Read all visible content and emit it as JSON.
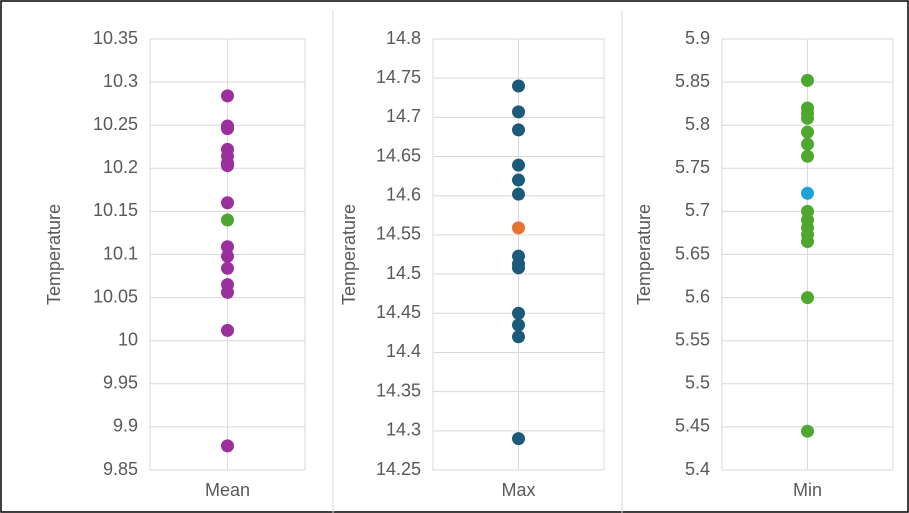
{
  "chart_data": [
    {
      "type": "scatter",
      "y_label": "Temperature",
      "categories": [
        "Mean"
      ],
      "ylim": [
        9.85,
        10.35
      ],
      "yticks": [
        9.85,
        9.9,
        9.95,
        10,
        10.05,
        10.1,
        10.15,
        10.2,
        10.25,
        10.3,
        10.35
      ],
      "grid": true,
      "series": [
        {
          "color": "#9b2f9e",
          "values": [
            10.284,
            10.249,
            10.246,
            10.222,
            10.214,
            10.206,
            10.203,
            10.16,
            10.109,
            10.098,
            10.084,
            10.065,
            10.056,
            10.012,
            9.878
          ]
        },
        {
          "color": "#4ea72e",
          "values": [
            10.14
          ]
        }
      ]
    },
    {
      "type": "scatter",
      "y_label": "Temperature",
      "categories": [
        "Max"
      ],
      "ylim": [
        14.25,
        14.8
      ],
      "yticks": [
        14.25,
        14.3,
        14.35,
        14.4,
        14.45,
        14.5,
        14.55,
        14.6,
        14.65,
        14.7,
        14.75,
        14.8
      ],
      "grid": true,
      "series": [
        {
          "color": "#1b5a7a",
          "values": [
            14.74,
            14.707,
            14.684,
            14.639,
            14.62,
            14.602,
            14.523,
            14.513,
            14.508,
            14.45,
            14.435,
            14.42,
            14.29
          ]
        },
        {
          "color": "#e97132",
          "values": [
            14.559
          ]
        }
      ]
    },
    {
      "type": "scatter",
      "y_label": "Temperature",
      "categories": [
        "Min"
      ],
      "ylim": [
        5.4,
        5.9
      ],
      "yticks": [
        5.4,
        5.45,
        5.5,
        5.55,
        5.6,
        5.65,
        5.7,
        5.75,
        5.8,
        5.85,
        5.9
      ],
      "grid": true,
      "series": [
        {
          "color": "#4ea72e",
          "values": [
            5.852,
            5.82,
            5.814,
            5.808,
            5.792,
            5.778,
            5.764,
            5.7,
            5.69,
            5.681,
            5.673,
            5.665,
            5.6,
            5.445
          ]
        },
        {
          "color": "#1ea0d8",
          "values": [
            5.721
          ]
        }
      ]
    }
  ]
}
